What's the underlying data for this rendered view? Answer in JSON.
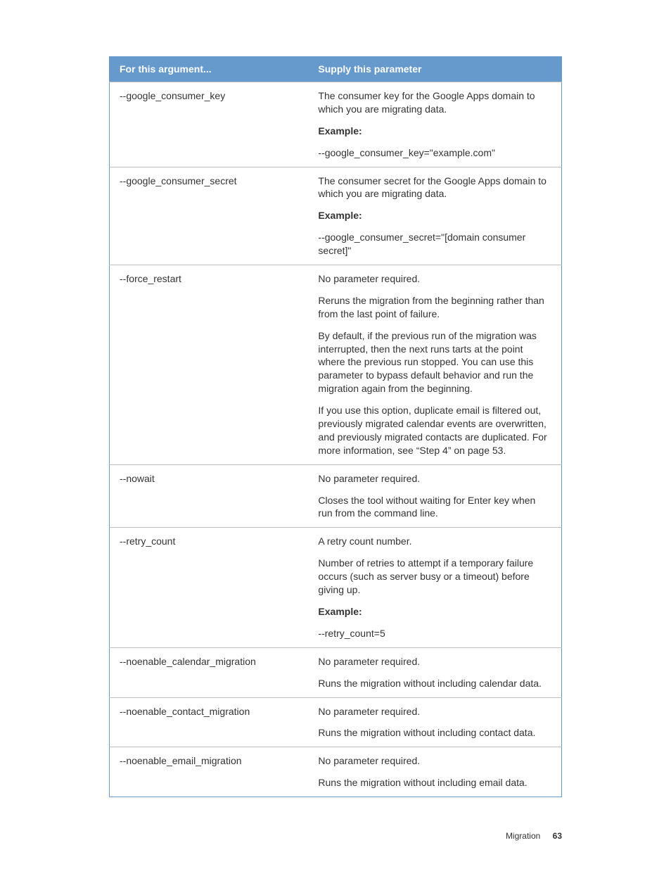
{
  "colors": {
    "header_bg": "#6699cc",
    "header_text": "#ffffff",
    "row_border": "#bfbfbf",
    "outer_border": "#6699cc",
    "body_text": "#333333",
    "page_bg": "#ffffff"
  },
  "table": {
    "header_argument": "For this argument...",
    "header_parameter": "Supply this parameter",
    "rows": [
      {
        "argument": "--google_consumer_key",
        "paragraphs": [
          {
            "text": "The consumer key for the Google Apps domain to which you are migrating data.",
            "bold": false
          },
          {
            "text": "Example:",
            "bold": true
          },
          {
            "text": "--google_consumer_key=\"example.com\"",
            "bold": false
          }
        ]
      },
      {
        "argument": "--google_consumer_secret",
        "paragraphs": [
          {
            "text": "The consumer secret for the Google Apps domain to which you are migrating data.",
            "bold": false
          },
          {
            "text": "Example:",
            "bold": true
          },
          {
            "text": "--google_consumer_secret=\"[domain consumer secret]\"",
            "bold": false
          }
        ]
      },
      {
        "argument": "--force_restart",
        "paragraphs": [
          {
            "text": "No parameter required.",
            "bold": false
          },
          {
            "text": "Reruns the migration from the beginning rather than from the last point of failure.",
            "bold": false
          },
          {
            "text": "By default, if the previous run of the migration was interrupted, then the next runs tarts at the point where the previous run stopped. You can use this parameter to bypass default behavior and run the migration again from the beginning.",
            "bold": false
          },
          {
            "text": "If you use this option, duplicate email is filtered out, previously migrated calendar events are overwritten, and previously migrated contacts are duplicated. For more information, see “Step 4” on page 53.",
            "bold": false
          }
        ]
      },
      {
        "argument": "--nowait",
        "paragraphs": [
          {
            "text": "No parameter required.",
            "bold": false
          },
          {
            "text": "Closes the tool without waiting for Enter key when run from the command line.",
            "bold": false
          }
        ]
      },
      {
        "argument": "--retry_count",
        "paragraphs": [
          {
            "text": "A retry count number.",
            "bold": false
          },
          {
            "text": "Number of retries to attempt if a temporary failure occurs (such as server busy or a timeout) before giving up.",
            "bold": false
          },
          {
            "text": "Example:",
            "bold": true
          },
          {
            "text": "--retry_count=5",
            "bold": false
          }
        ]
      },
      {
        "argument": "--noenable_calendar_migration",
        "paragraphs": [
          {
            "text": "No parameter required.",
            "bold": false
          },
          {
            "text": "Runs the migration without including calendar data.",
            "bold": false
          }
        ]
      },
      {
        "argument": "--noenable_contact_migration",
        "paragraphs": [
          {
            "text": "No parameter required.",
            "bold": false
          },
          {
            "text": "Runs the migration without including contact data.",
            "bold": false
          }
        ]
      },
      {
        "argument": "--noenable_email_migration",
        "paragraphs": [
          {
            "text": "No parameter required.",
            "bold": false
          },
          {
            "text": "Runs the migration without including email data.",
            "bold": false
          }
        ]
      }
    ]
  },
  "footer": {
    "section": "Migration",
    "page_number": "63"
  }
}
